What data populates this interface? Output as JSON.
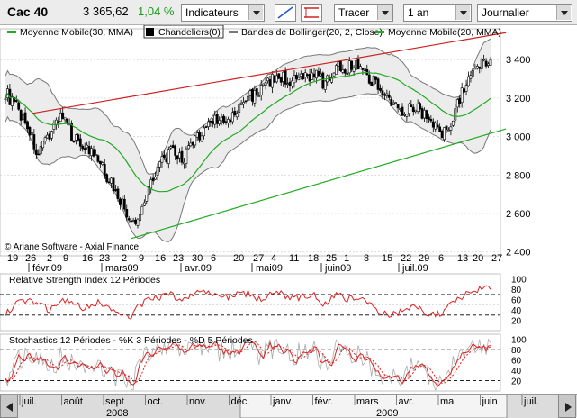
{
  "toolbar": {
    "symbol": "Cac 40",
    "price": "3 365,62",
    "change": "1,04 %",
    "indicators_label": "Indicateurs",
    "draw_label": "Tracer",
    "period_label": "1 an",
    "interval_label": "Journalier"
  },
  "colors": {
    "positive": "#1a9a1a",
    "ma": "#22aa22",
    "rsi": "#dd2222",
    "trend_up": "#cc2222",
    "trend_low": "#22aa22",
    "bollinger": "#888888"
  },
  "chart_data": [
    {
      "type": "candlestick",
      "legend": [
        "Moyenne Mobile(30, MMA)",
        "Chandeliers(0)",
        "Bandes de Bollinger(20, 2, Close)",
        "Moyenne Mobile(20, MMA)"
      ],
      "watermark": "© Ariane Software - Axial Finance",
      "y_ticks": [
        2400,
        2600,
        2800,
        3000,
        3200,
        3400
      ],
      "ylim": [
        2380,
        3560
      ],
      "x_day_ticks": [
        "19",
        "26",
        "2",
        "9",
        "16",
        "23",
        "2",
        "9",
        "16",
        "23",
        "30",
        "6",
        "20",
        "27",
        "4",
        "11",
        "18",
        "25",
        "1",
        "8",
        "15",
        "22",
        "29",
        "6",
        "13",
        "20",
        "27"
      ],
      "x_month_ticks": [
        "févr.09",
        "mars09",
        "avr.09",
        "mai09",
        "juin09",
        "juil.09"
      ],
      "close_keypoints": [
        [
          0,
          3230
        ],
        [
          5,
          3150
        ],
        [
          10,
          3060
        ],
        [
          15,
          2890
        ],
        [
          20,
          3020
        ],
        [
          25,
          3120
        ],
        [
          30,
          3010
        ],
        [
          36,
          2950
        ],
        [
          42,
          2870
        ],
        [
          48,
          2760
        ],
        [
          53,
          2650
        ],
        [
          57,
          2540
        ],
        [
          60,
          2560
        ],
        [
          63,
          2680
        ],
        [
          67,
          2800
        ],
        [
          71,
          2870
        ],
        [
          75,
          2920
        ],
        [
          80,
          2880
        ],
        [
          85,
          2960
        ],
        [
          90,
          3040
        ],
        [
          95,
          3100
        ],
        [
          100,
          3060
        ],
        [
          105,
          3130
        ],
        [
          110,
          3210
        ],
        [
          115,
          3230
        ],
        [
          120,
          3290
        ],
        [
          125,
          3310
        ],
        [
          130,
          3280
        ],
        [
          135,
          3300
        ],
        [
          140,
          3330
        ],
        [
          145,
          3270
        ],
        [
          150,
          3370
        ],
        [
          155,
          3360
        ],
        [
          160,
          3380
        ],
        [
          165,
          3310
        ],
        [
          170,
          3260
        ],
        [
          175,
          3170
        ],
        [
          180,
          3140
        ],
        [
          185,
          3160
        ],
        [
          190,
          3120
        ],
        [
          195,
          3060
        ],
        [
          198,
          3000
        ],
        [
          201,
          3050
        ],
        [
          205,
          3180
        ],
        [
          209,
          3270
        ],
        [
          213,
          3330
        ],
        [
          217,
          3410
        ],
        [
          220,
          3380
        ]
      ],
      "trend_upper": [
        [
          12,
          3120
        ],
        [
          227,
          3540
        ]
      ],
      "trend_lower": [
        [
          57,
          2470
        ],
        [
          227,
          3040
        ]
      ]
    },
    {
      "type": "line",
      "title": "Relative Strength Index 12 Périodes",
      "y_ticks": [
        20,
        40,
        60,
        80,
        100
      ],
      "ylim": [
        0,
        110
      ],
      "levels": [
        30,
        70
      ],
      "rsi_keypoints": [
        [
          0,
          32
        ],
        [
          5,
          50
        ],
        [
          10,
          62
        ],
        [
          15,
          52
        ],
        [
          20,
          40
        ],
        [
          25,
          60
        ],
        [
          30,
          52
        ],
        [
          36,
          44
        ],
        [
          42,
          55
        ],
        [
          48,
          40
        ],
        [
          53,
          34
        ],
        [
          57,
          28
        ],
        [
          60,
          46
        ],
        [
          63,
          55
        ],
        [
          67,
          62
        ],
        [
          71,
          66
        ],
        [
          75,
          70
        ],
        [
          80,
          58
        ],
        [
          85,
          72
        ],
        [
          90,
          75
        ],
        [
          95,
          68
        ],
        [
          100,
          66
        ],
        [
          105,
          70
        ],
        [
          110,
          72
        ],
        [
          115,
          60
        ],
        [
          120,
          68
        ],
        [
          125,
          72
        ],
        [
          130,
          62
        ],
        [
          135,
          66
        ],
        [
          140,
          70
        ],
        [
          145,
          50
        ],
        [
          150,
          74
        ],
        [
          155,
          62
        ],
        [
          160,
          66
        ],
        [
          165,
          52
        ],
        [
          170,
          38
        ],
        [
          175,
          30
        ],
        [
          180,
          40
        ],
        [
          185,
          48
        ],
        [
          190,
          36
        ],
        [
          195,
          33
        ],
        [
          198,
          30
        ],
        [
          201,
          46
        ],
        [
          205,
          62
        ],
        [
          209,
          72
        ],
        [
          213,
          78
        ],
        [
          217,
          88
        ],
        [
          220,
          86
        ]
      ]
    },
    {
      "type": "line",
      "title": "Stochastics 12 Périodes - %K 3 Périodes - %D 5 Périodes",
      "y_ticks": [
        20,
        40,
        60,
        80,
        100
      ],
      "ylim": [
        0,
        110
      ],
      "levels": [
        20,
        80
      ],
      "k_keypoints": [
        [
          0,
          20
        ],
        [
          5,
          55
        ],
        [
          10,
          75
        ],
        [
          15,
          60
        ],
        [
          20,
          35
        ],
        [
          25,
          70
        ],
        [
          30,
          55
        ],
        [
          36,
          40
        ],
        [
          42,
          60
        ],
        [
          48,
          30
        ],
        [
          53,
          20
        ],
        [
          57,
          12
        ],
        [
          60,
          40
        ],
        [
          63,
          65
        ],
        [
          67,
          80
        ],
        [
          71,
          85
        ],
        [
          75,
          90
        ],
        [
          80,
          70
        ],
        [
          85,
          88
        ],
        [
          90,
          92
        ],
        [
          95,
          80
        ],
        [
          100,
          72
        ],
        [
          105,
          85
        ],
        [
          110,
          90
        ],
        [
          115,
          70
        ],
        [
          120,
          82
        ],
        [
          125,
          88
        ],
        [
          130,
          70
        ],
        [
          135,
          78
        ],
        [
          140,
          85
        ],
        [
          145,
          50
        ],
        [
          150,
          88
        ],
        [
          155,
          72
        ],
        [
          160,
          78
        ],
        [
          165,
          55
        ],
        [
          170,
          30
        ],
        [
          175,
          20
        ],
        [
          180,
          35
        ],
        [
          185,
          50
        ],
        [
          190,
          28
        ],
        [
          195,
          18
        ],
        [
          198,
          15
        ],
        [
          201,
          45
        ],
        [
          205,
          75
        ],
        [
          209,
          88
        ],
        [
          213,
          92
        ],
        [
          217,
          95
        ],
        [
          220,
          88
        ]
      ]
    }
  ],
  "overview": {
    "months": [
      "juil.",
      "août",
      "sept",
      "oct.",
      "nov.",
      "déc.",
      "janv.",
      "févr.",
      "mars",
      "avr.",
      "mai",
      "juin",
      "juil."
    ],
    "years": [
      "2008",
      "2009"
    ]
  }
}
